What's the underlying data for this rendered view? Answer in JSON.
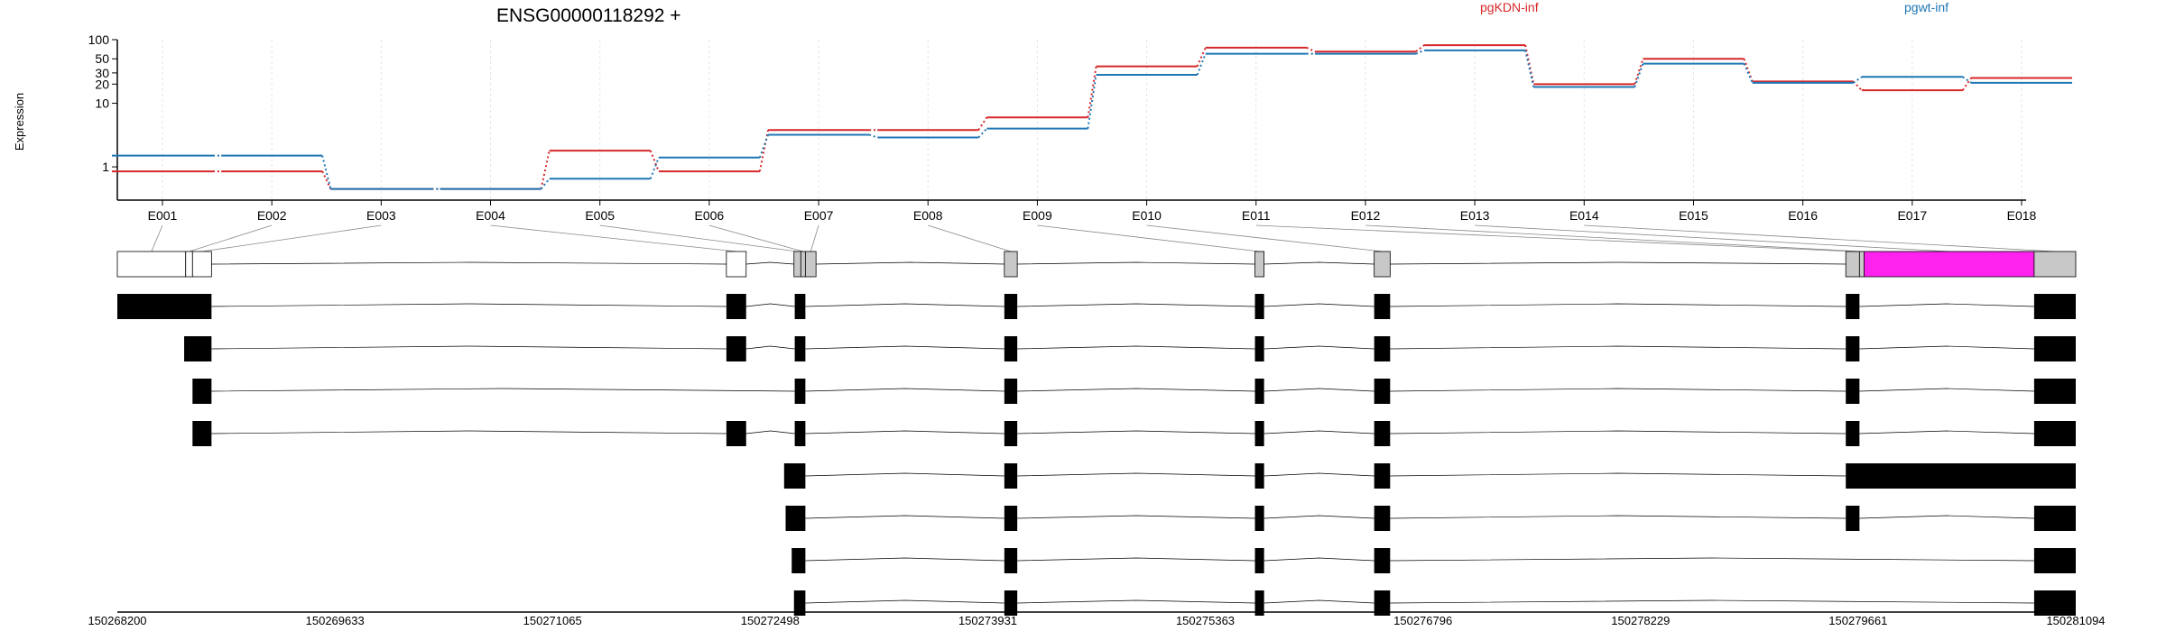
{
  "title": "ENSG00000118292 +",
  "y_axis_label": "Expression",
  "colors": {
    "pgKDN-inf": "#d62728",
    "pgwt-inf": "#1f77b4",
    "highlight_exon": "#ff22ee",
    "exon_fill": "#c8c8c8"
  },
  "chart_data": {
    "type": "line",
    "scale": "log",
    "ylim": [
      0.3,
      100
    ],
    "y_ticks": [
      1,
      10,
      20,
      30,
      50,
      100
    ],
    "categories": [
      "E001",
      "E002",
      "E003",
      "E004",
      "E005",
      "E006",
      "E007",
      "E008",
      "E009",
      "E010",
      "E011",
      "E012",
      "E013",
      "E014",
      "E015",
      "E016",
      "E017",
      "E018"
    ],
    "series": [
      {
        "name": "pgKDN-inf",
        "values": [
          0.85,
          0.85,
          0.45,
          0.45,
          1.8,
          0.85,
          3.8,
          3.8,
          6,
          38,
          75,
          65,
          82,
          20,
          50,
          22,
          16,
          25
        ]
      },
      {
        "name": "pgwt-inf",
        "values": [
          1.5,
          1.5,
          0.45,
          0.45,
          0.65,
          1.4,
          3.2,
          2.9,
          4,
          28,
          60,
          60,
          68,
          18,
          42,
          21,
          26,
          21
        ]
      }
    ],
    "genome_axis": {
      "start": 150268200,
      "end": 150281094,
      "ticks": [
        150268200,
        150269633,
        150271065,
        150272498,
        150273931,
        150275363,
        150276796,
        150278229,
        150279661,
        150281094
      ]
    },
    "exon_bins": [
      {
        "start": 150268200,
        "end": 150268650,
        "type": "untranslated"
      },
      {
        "start": 150268650,
        "end": 150268695,
        "type": "untranslated"
      },
      {
        "start": 150268695,
        "end": 150268820,
        "type": "untranslated"
      },
      {
        "start": 150272210,
        "end": 150272340,
        "type": "untranslated"
      },
      {
        "start": 150272655,
        "end": 150272700,
        "type": "coding"
      },
      {
        "start": 150272700,
        "end": 150272730,
        "type": "coding"
      },
      {
        "start": 150272730,
        "end": 150272800,
        "type": "coding"
      },
      {
        "start": 150274040,
        "end": 150274125,
        "type": "coding"
      },
      {
        "start": 150275690,
        "end": 150275750,
        "type": "coding"
      },
      {
        "start": 150276475,
        "end": 150276580,
        "type": "coding"
      },
      {
        "start": 150279580,
        "end": 150279670,
        "type": "coding"
      },
      {
        "start": 150279670,
        "end": 150279700,
        "type": "coding"
      },
      {
        "start": 150279700,
        "end": 150280820,
        "type": "highlight"
      },
      {
        "start": 150280820,
        "end": 150281094,
        "type": "coding"
      }
    ],
    "transcripts": [
      [
        [
          150268200,
          150268820
        ],
        [
          150272210,
          150272340
        ],
        [
          150272660,
          150272730
        ],
        [
          150274040,
          150274125
        ],
        [
          150275690,
          150275750
        ],
        [
          150276475,
          150276580
        ],
        [
          150279580,
          150279670
        ],
        [
          150280820,
          150281094
        ]
      ],
      [
        [
          150268640,
          150268820
        ],
        [
          150272210,
          150272340
        ],
        [
          150272660,
          150272730
        ],
        [
          150274040,
          150274125
        ],
        [
          150275690,
          150275750
        ],
        [
          150276475,
          150276580
        ],
        [
          150279580,
          150279670
        ],
        [
          150280820,
          150281094
        ]
      ],
      [
        [
          150268695,
          150268820
        ],
        [
          150272660,
          150272730
        ],
        [
          150274040,
          150274125
        ],
        [
          150275690,
          150275750
        ],
        [
          150276475,
          150276580
        ],
        [
          150279580,
          150279670
        ],
        [
          150280820,
          150281094
        ]
      ],
      [
        [
          150268695,
          150268820
        ],
        [
          150272210,
          150272340
        ],
        [
          150272660,
          150272730
        ],
        [
          150274040,
          150274125
        ],
        [
          150275690,
          150275750
        ],
        [
          150276475,
          150276580
        ],
        [
          150279580,
          150279670
        ],
        [
          150280820,
          150281094
        ]
      ],
      [
        [
          150272590,
          150272730
        ],
        [
          150274040,
          150274125
        ],
        [
          150275690,
          150275750
        ],
        [
          150276475,
          150276580
        ],
        [
          150279580,
          150281094
        ]
      ],
      [
        [
          150272600,
          150272730
        ],
        [
          150274040,
          150274125
        ],
        [
          150275690,
          150275750
        ],
        [
          150276475,
          150276580
        ],
        [
          150279580,
          150279670
        ],
        [
          150280820,
          150281094
        ]
      ],
      [
        [
          150272640,
          150272730
        ],
        [
          150274040,
          150274125
        ],
        [
          150275690,
          150275750
        ],
        [
          150276475,
          150276580
        ],
        [
          150280820,
          150281094
        ]
      ],
      [
        [
          150272655,
          150272730
        ],
        [
          150274040,
          150274125
        ],
        [
          150275690,
          150275750
        ],
        [
          150276475,
          150276580
        ],
        [
          150280820,
          150281094
        ]
      ]
    ]
  }
}
